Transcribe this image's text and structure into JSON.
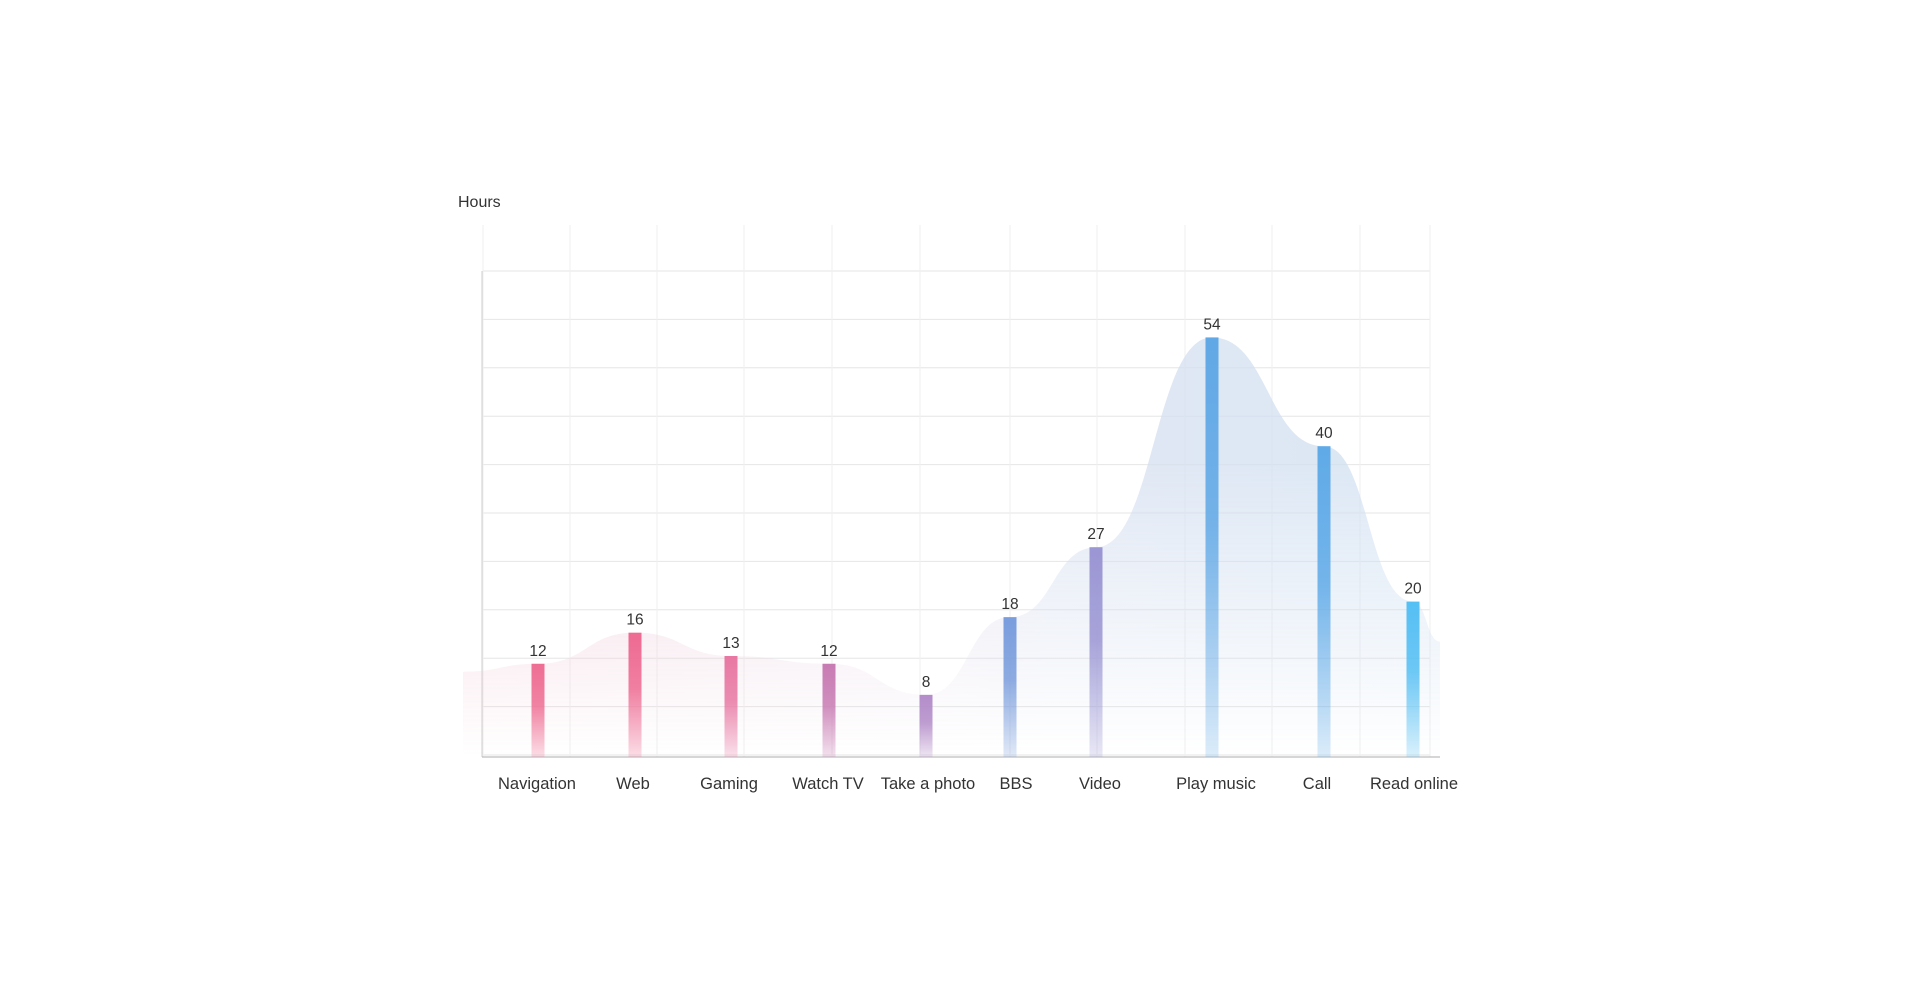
{
  "chart_data": {
    "type": "bar",
    "ylabel": "Hours",
    "xlabel": "",
    "categories": [
      "Navigation",
      "Web",
      "Gaming",
      "Watch TV",
      "Take a photo",
      "BBS",
      "Video",
      "Play music",
      "Call",
      "Read online"
    ],
    "values": [
      12,
      16,
      13,
      12,
      8,
      18,
      27,
      54,
      40,
      20
    ],
    "grid": true,
    "colors": [
      "#ee6e93",
      "#ee6a92",
      "#e878a2",
      "#c87bb3",
      "#b38cc9",
      "#7a9ddd",
      "#9b96d4",
      "#60a8e6",
      "#5faae8",
      "#55bff4"
    ]
  }
}
